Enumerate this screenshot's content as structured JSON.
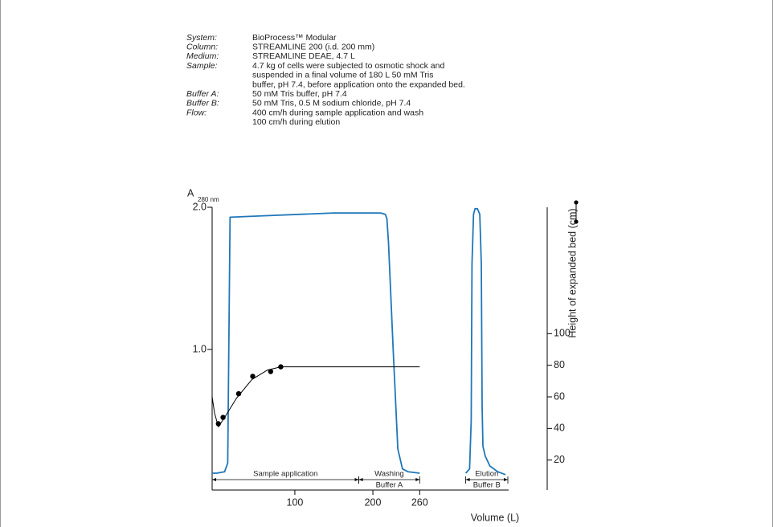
{
  "header": {
    "conditions": [
      {
        "label": "System:",
        "lines": [
          "BioProcess™ Modular"
        ]
      },
      {
        "label": "Column:",
        "lines": [
          "STREAMLINE 200 (i.d. 200 mm)"
        ]
      },
      {
        "label": "Medium:",
        "lines": [
          "STREAMLINE DEAE, 4.7 L"
        ]
      },
      {
        "label": "Sample:",
        "lines": [
          "4.7 kg of cells were subjected to osmotic shock and",
          "suspended in a final volume of 180 L 50 mM Tris",
          "buffer, pH 7.4, before application onto the expanded bed."
        ]
      },
      {
        "label": "Buffer A:",
        "lines": [
          "50 mM Tris buffer, pH 7.4"
        ]
      },
      {
        "label": "Buffer B:",
        "lines": [
          "50 mM Tris, 0.5 M sodium chloride, pH 7.4"
        ]
      },
      {
        "label": "Flow:",
        "lines": [
          "400 cm/h during sample application and wash",
          "100 cm/h during elution"
        ]
      }
    ]
  },
  "chart_data": {
    "type": "line",
    "y_label": "A",
    "y_label_sub": "280 nm",
    "x_label": "Volume (L)",
    "y2_label": "Height of expanded bed (cm)",
    "xlim": [
      -6,
      374
    ],
    "xticks": [
      100,
      200,
      260
    ],
    "ylim": [
      0,
      2.0
    ],
    "yticks": [
      {
        "value": 1,
        "label": "1.0"
      },
      {
        "value": 2,
        "label": "2.0"
      }
    ],
    "y2lim": [
      0,
      180
    ],
    "y2ticks": [
      20,
      40,
      60,
      80,
      100
    ],
    "series": [
      {
        "color": "#1f77b9",
        "axis": "y",
        "x": [
          -6,
          0,
          10,
          14,
          15,
          17,
          60,
          150,
          210,
          216,
          218,
          220,
          226,
          232,
          238,
          245,
          260,
          290,
          319,
          324,
          326,
          327,
          329,
          331,
          334,
          337,
          339,
          340,
          341,
          344,
          350,
          360,
          370
        ],
        "values": [
          0.13,
          0.13,
          0.14,
          0.2,
          0.8,
          1.93,
          1.94,
          1.96,
          1.96,
          1.95,
          1.92,
          1.75,
          1.0,
          0.3,
          0.16,
          0.14,
          0.13,
          null,
          0.13,
          0.16,
          0.5,
          1.6,
          1.95,
          1.99,
          1.99,
          1.95,
          1.6,
          0.6,
          0.32,
          0.25,
          0.18,
          0.14,
          0.12
        ]
      },
      {
        "color": "#000000",
        "axis": "y2",
        "x": [
          -6,
          -3,
          2,
          10,
          25,
          45,
          65,
          82,
          100,
          150,
          200,
          260
        ],
        "values": [
          60,
          50,
          41,
          47,
          59,
          71,
          77,
          79,
          79,
          79,
          79,
          79
        ]
      },
      {
        "color": "#000000",
        "axis": "y2",
        "marker": "dot",
        "x": [
          2,
          8,
          28,
          46,
          69,
          82
        ],
        "values": [
          43,
          47,
          62,
          73,
          76,
          79
        ]
      }
    ],
    "phases": [
      {
        "label": "Sample application",
        "range": [
          -6,
          182
        ]
      },
      {
        "label": "Washing",
        "sublabel": "Buffer A",
        "range": [
          182,
          260
        ]
      },
      {
        "label": "Elution",
        "sublabel": "Buffer B",
        "range": [
          319,
          373
        ]
      }
    ]
  }
}
